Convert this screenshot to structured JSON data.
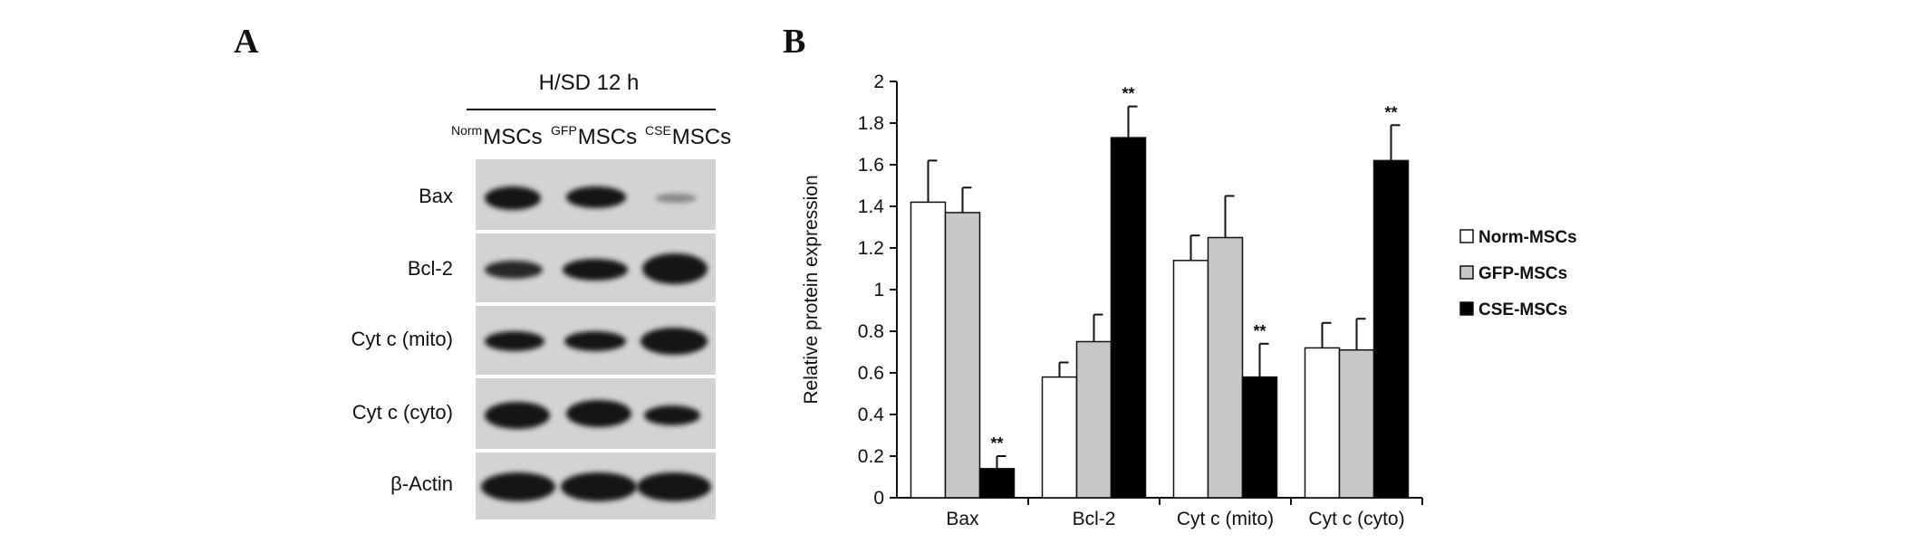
{
  "panel_a": {
    "letter": "A",
    "header": "H/SD 12 h",
    "lanes": [
      {
        "sup": "Norm",
        "base": "MSCs"
      },
      {
        "sup": "GFP",
        "base": "MSCs"
      },
      {
        "sup": "CSE",
        "base": "MSCs"
      }
    ],
    "rows": [
      "Bax",
      "Bcl-2",
      "Cyt c (mito)",
      "Cyt c (cyto)",
      "β-Actin"
    ]
  },
  "panel_b": {
    "letter": "B"
  },
  "chart_data": {
    "type": "bar",
    "ylabel": "Relative protein expression",
    "xlabel": "",
    "ylim": [
      0,
      2
    ],
    "yticks": [
      "0",
      "0.2",
      "0.4",
      "0.6",
      "0.8",
      "1",
      "1.2",
      "1.4",
      "1.6",
      "1.8",
      "2"
    ],
    "categories": [
      "Bax",
      "Bcl-2",
      "Cyt c (mito)",
      "Cyt c (cyto)"
    ],
    "series": [
      {
        "name": "Norm-MSCs",
        "values": [
          1.42,
          0.58,
          1.14,
          0.72
        ],
        "errors": [
          0.2,
          0.07,
          0.12,
          0.12
        ],
        "color": "#ffffff"
      },
      {
        "name": "GFP-MSCs",
        "values": [
          1.37,
          0.75,
          1.25,
          0.71
        ],
        "errors": [
          0.12,
          0.13,
          0.2,
          0.15
        ],
        "color": "#c8c8c8"
      },
      {
        "name": "CSE-MSCs",
        "values": [
          0.14,
          1.73,
          0.58,
          1.62
        ],
        "errors": [
          0.06,
          0.15,
          0.16,
          0.17
        ],
        "color": "#000000"
      }
    ],
    "annotations": [
      {
        "category": "Bax",
        "series": "CSE-MSCs",
        "text": "**"
      },
      {
        "category": "Bcl-2",
        "series": "CSE-MSCs",
        "text": "**"
      },
      {
        "category": "Cyt c (mito)",
        "series": "CSE-MSCs",
        "text": "**"
      },
      {
        "category": "Cyt c (cyto)",
        "series": "CSE-MSCs",
        "text": "**"
      }
    ],
    "legend_position": "right",
    "grid": false
  }
}
